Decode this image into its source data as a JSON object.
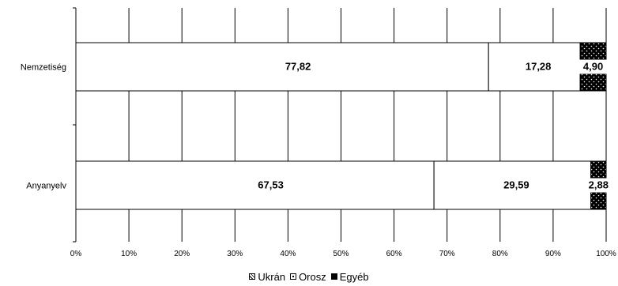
{
  "chart_data": {
    "type": "bar",
    "orientation": "horizontal-stacked-100",
    "categories": [
      "Nemzetiség",
      "Anyanyelv"
    ],
    "series": [
      {
        "name": "Ukrán",
        "values": [
          77.82,
          67.53
        ],
        "labels": [
          "77,82",
          "67,53"
        ]
      },
      {
        "name": "Orosz",
        "values": [
          17.28,
          29.59
        ],
        "labels": [
          "17,28",
          "29,59"
        ]
      },
      {
        "name": "Egyéb",
        "values": [
          4.9,
          2.88
        ],
        "labels": [
          "4,90",
          "2,88"
        ]
      }
    ],
    "x_ticks": [
      "0%",
      "10%",
      "20%",
      "30%",
      "40%",
      "50%",
      "60%",
      "70%",
      "80%",
      "90%",
      "100%"
    ],
    "xlim": [
      0,
      100
    ],
    "grid": "vertical",
    "legend_position": "bottom"
  },
  "colors": {
    "ukran": "#ffffff",
    "orosz": "#ffffff",
    "egyeb": "#000000",
    "grid": "#000000"
  }
}
